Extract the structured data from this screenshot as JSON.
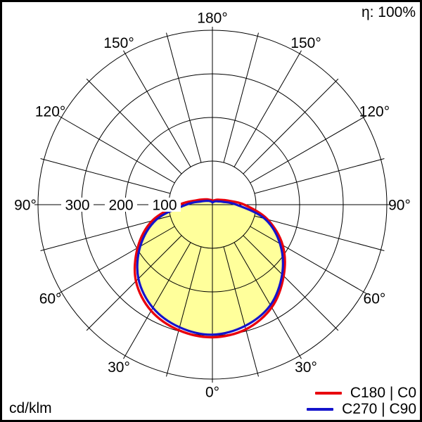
{
  "header": {
    "efficiency": "η: 100%"
  },
  "footer": {
    "unit": "cd/klm"
  },
  "legend": {
    "items": [
      {
        "label": "C180 | C0",
        "color": "#e8000d"
      },
      {
        "label": "C270 | C90",
        "color": "#1414cc"
      }
    ]
  },
  "chart_data": {
    "type": "polar-intensity-distribution",
    "unit": "cd/klm",
    "efficiency": "η: 100%",
    "rlim": [
      0,
      400
    ],
    "rings": [
      100,
      200,
      300,
      400
    ],
    "ring_labels": [
      {
        "value": 100,
        "text": "100"
      },
      {
        "value": 200,
        "text": "200"
      },
      {
        "value": 300,
        "text": "300"
      }
    ],
    "angle_step_deg": 15,
    "angle_labels": [
      {
        "deg": 0,
        "text": "0°"
      },
      {
        "deg": 30,
        "text": "30°"
      },
      {
        "deg": 60,
        "text": "60°"
      },
      {
        "deg": 90,
        "text": "90°"
      },
      {
        "deg": 120,
        "text": "120°"
      },
      {
        "deg": 150,
        "text": "150°"
      },
      {
        "deg": 180,
        "text": "180°"
      }
    ],
    "grid_color": "#000000",
    "fill_color": "#ffff9b",
    "series": [
      {
        "name": "C180 | C0",
        "color": "#e8000d",
        "left_plane": "C180",
        "right_plane": "C0",
        "angles_deg": [
          0,
          15,
          30,
          45,
          60,
          75,
          90,
          105,
          120,
          135,
          150,
          165,
          180
        ],
        "left_values": [
          304,
          298,
          281,
          248,
          198,
          143,
          76,
          38,
          24,
          17,
          13,
          11,
          9
        ],
        "right_values": [
          304,
          296,
          272,
          231,
          186,
          131,
          73,
          36,
          22,
          16,
          12,
          10,
          9
        ]
      },
      {
        "name": "C270 | C90",
        "color": "#1414cc",
        "left_plane": "C270",
        "right_plane": "C90",
        "angles_deg": [
          0,
          15,
          30,
          45,
          60,
          75,
          90,
          105,
          120,
          135,
          150,
          165,
          180
        ],
        "left_values": [
          298,
          291,
          273,
          240,
          191,
          133,
          60,
          28,
          17,
          12,
          9,
          7,
          5
        ],
        "right_values": [
          298,
          288,
          266,
          226,
          179,
          124,
          55,
          25,
          15,
          11,
          8,
          6,
          5
        ]
      }
    ]
  }
}
